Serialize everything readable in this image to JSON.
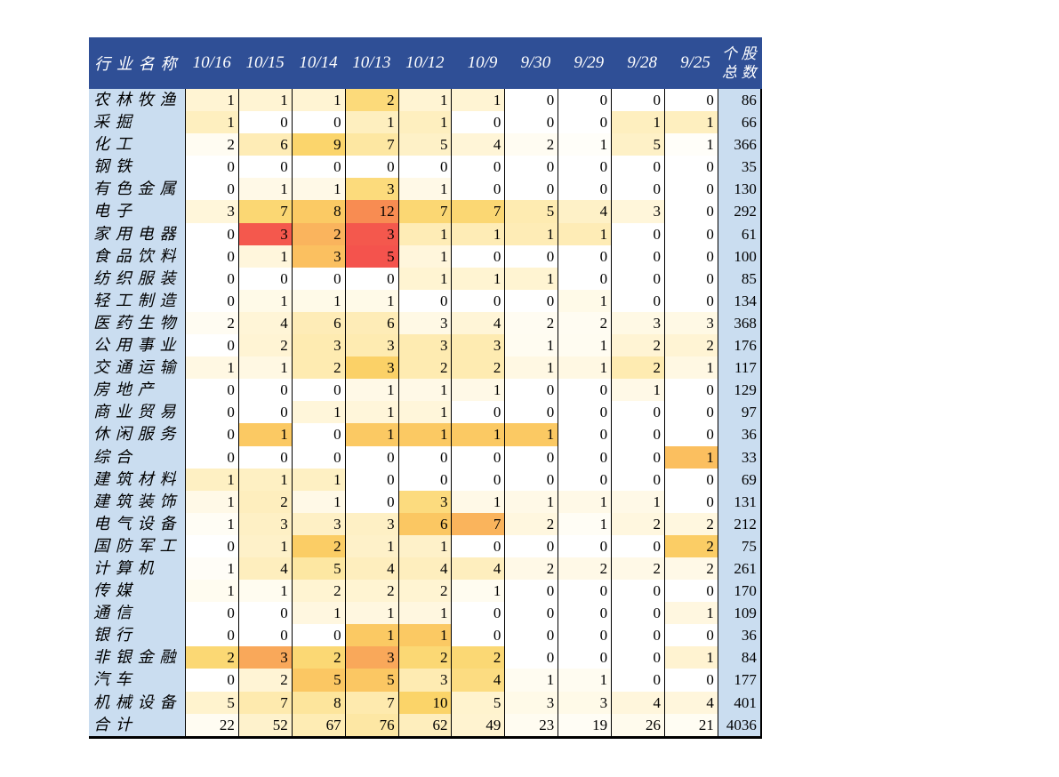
{
  "chart_data": {
    "type": "heatmap",
    "description_note": "",
    "header": {
      "industry": "行业名称",
      "dates": [
        "10/16",
        "10/15",
        "10/14",
        "10/13",
        "10/12",
        "10/9",
        "9/30",
        "9/29",
        "9/28",
        "9/25"
      ],
      "total_line1": "个股",
      "total_line2": "总数"
    },
    "rows": [
      {
        "name": "农林牧渔",
        "values": [
          1,
          1,
          1,
          2,
          1,
          1,
          0,
          0,
          0,
          0
        ],
        "total": 86
      },
      {
        "name": "采掘",
        "values": [
          1,
          0,
          0,
          1,
          1,
          0,
          0,
          0,
          1,
          1
        ],
        "total": 66
      },
      {
        "name": "化工",
        "values": [
          2,
          6,
          9,
          7,
          5,
          4,
          2,
          1,
          5,
          1
        ],
        "total": 366
      },
      {
        "name": "钢铁",
        "values": [
          0,
          0,
          0,
          0,
          0,
          0,
          0,
          0,
          0,
          0
        ],
        "total": 35
      },
      {
        "name": "有色金属",
        "values": [
          0,
          1,
          1,
          3,
          1,
          0,
          0,
          0,
          0,
          0
        ],
        "total": 130
      },
      {
        "name": "电子",
        "values": [
          3,
          7,
          8,
          12,
          7,
          7,
          5,
          4,
          3,
          0
        ],
        "total": 292
      },
      {
        "name": "家用电器",
        "values": [
          0,
          3,
          2,
          3,
          1,
          1,
          1,
          1,
          0,
          0
        ],
        "total": 61
      },
      {
        "name": "食品饮料",
        "values": [
          0,
          1,
          3,
          5,
          1,
          0,
          0,
          0,
          0,
          0
        ],
        "total": 100
      },
      {
        "name": "纺织服装",
        "values": [
          0,
          0,
          0,
          0,
          1,
          1,
          1,
          0,
          0,
          0
        ],
        "total": 85
      },
      {
        "name": "轻工制造",
        "values": [
          0,
          1,
          1,
          1,
          0,
          0,
          0,
          1,
          0,
          0
        ],
        "total": 134
      },
      {
        "name": "医药生物",
        "values": [
          2,
          4,
          6,
          6,
          3,
          4,
          2,
          2,
          3,
          3
        ],
        "total": 368
      },
      {
        "name": "公用事业",
        "values": [
          0,
          2,
          3,
          3,
          3,
          3,
          1,
          1,
          2,
          2
        ],
        "total": 176
      },
      {
        "name": "交通运输",
        "values": [
          1,
          1,
          2,
          3,
          2,
          2,
          1,
          1,
          2,
          1
        ],
        "total": 117
      },
      {
        "name": "房地产",
        "values": [
          0,
          0,
          0,
          1,
          1,
          1,
          0,
          0,
          1,
          0
        ],
        "total": 129
      },
      {
        "name": "商业贸易",
        "values": [
          0,
          0,
          1,
          1,
          1,
          0,
          0,
          0,
          0,
          0
        ],
        "total": 97
      },
      {
        "name": "休闲服务",
        "values": [
          0,
          1,
          0,
          1,
          1,
          1,
          1,
          0,
          0,
          0
        ],
        "total": 36
      },
      {
        "name": "综合",
        "values": [
          0,
          0,
          0,
          0,
          0,
          0,
          0,
          0,
          0,
          1
        ],
        "total": 33
      },
      {
        "name": "建筑材料",
        "values": [
          1,
          1,
          1,
          0,
          0,
          0,
          0,
          0,
          0,
          0
        ],
        "total": 69
      },
      {
        "name": "建筑装饰",
        "values": [
          1,
          2,
          1,
          0,
          3,
          1,
          1,
          1,
          1,
          0
        ],
        "total": 131
      },
      {
        "name": "电气设备",
        "values": [
          1,
          3,
          3,
          3,
          6,
          7,
          2,
          1,
          2,
          2
        ],
        "total": 212
      },
      {
        "name": "国防军工",
        "values": [
          0,
          1,
          2,
          1,
          1,
          0,
          0,
          0,
          0,
          2
        ],
        "total": 75
      },
      {
        "name": "计算机",
        "values": [
          1,
          4,
          5,
          4,
          4,
          4,
          2,
          2,
          2,
          2
        ],
        "total": 261
      },
      {
        "name": "传媒",
        "values": [
          1,
          1,
          2,
          2,
          2,
          1,
          0,
          0,
          0,
          0
        ],
        "total": 170
      },
      {
        "name": "通信",
        "values": [
          0,
          0,
          1,
          1,
          1,
          0,
          0,
          0,
          0,
          1
        ],
        "total": 109
      },
      {
        "name": "银行",
        "values": [
          0,
          0,
          0,
          1,
          1,
          0,
          0,
          0,
          0,
          0
        ],
        "total": 36
      },
      {
        "name": "非银金融",
        "values": [
          2,
          3,
          2,
          3,
          2,
          2,
          0,
          0,
          0,
          1
        ],
        "total": 84
      },
      {
        "name": "汽车",
        "values": [
          0,
          2,
          5,
          5,
          3,
          4,
          1,
          1,
          0,
          0
        ],
        "total": 177
      },
      {
        "name": "机械设备",
        "values": [
          5,
          7,
          8,
          7,
          10,
          5,
          3,
          3,
          4,
          4
        ],
        "total": 401
      },
      {
        "name": "合计",
        "values": [
          22,
          52,
          67,
          76,
          62,
          49,
          23,
          19,
          26,
          21
        ],
        "total": 4036,
        "is_total": true
      }
    ],
    "color_scale": {
      "basis": "cell value divided by row total (个股总数)",
      "stops": [
        [
          0.0,
          "#FFFFFF"
        ],
        [
          0.005,
          "#FFFDF4"
        ],
        [
          0.01,
          "#FFF6DC"
        ],
        [
          0.015,
          "#FEEFC0"
        ],
        [
          0.02,
          "#FDE59C"
        ],
        [
          0.025,
          "#FBD468"
        ],
        [
          0.031,
          "#FBBC5E"
        ],
        [
          0.036,
          "#F9A75A"
        ],
        [
          0.041,
          "#F88D52"
        ],
        [
          0.046,
          "#F66B4E"
        ],
        [
          0.05,
          "#F4534D"
        ]
      ]
    },
    "colors": {
      "header_bg": "#2F4F96",
      "header_text": "#FFFFFF",
      "side_col_bg": "#CADDF0",
      "border": "#000000"
    }
  }
}
